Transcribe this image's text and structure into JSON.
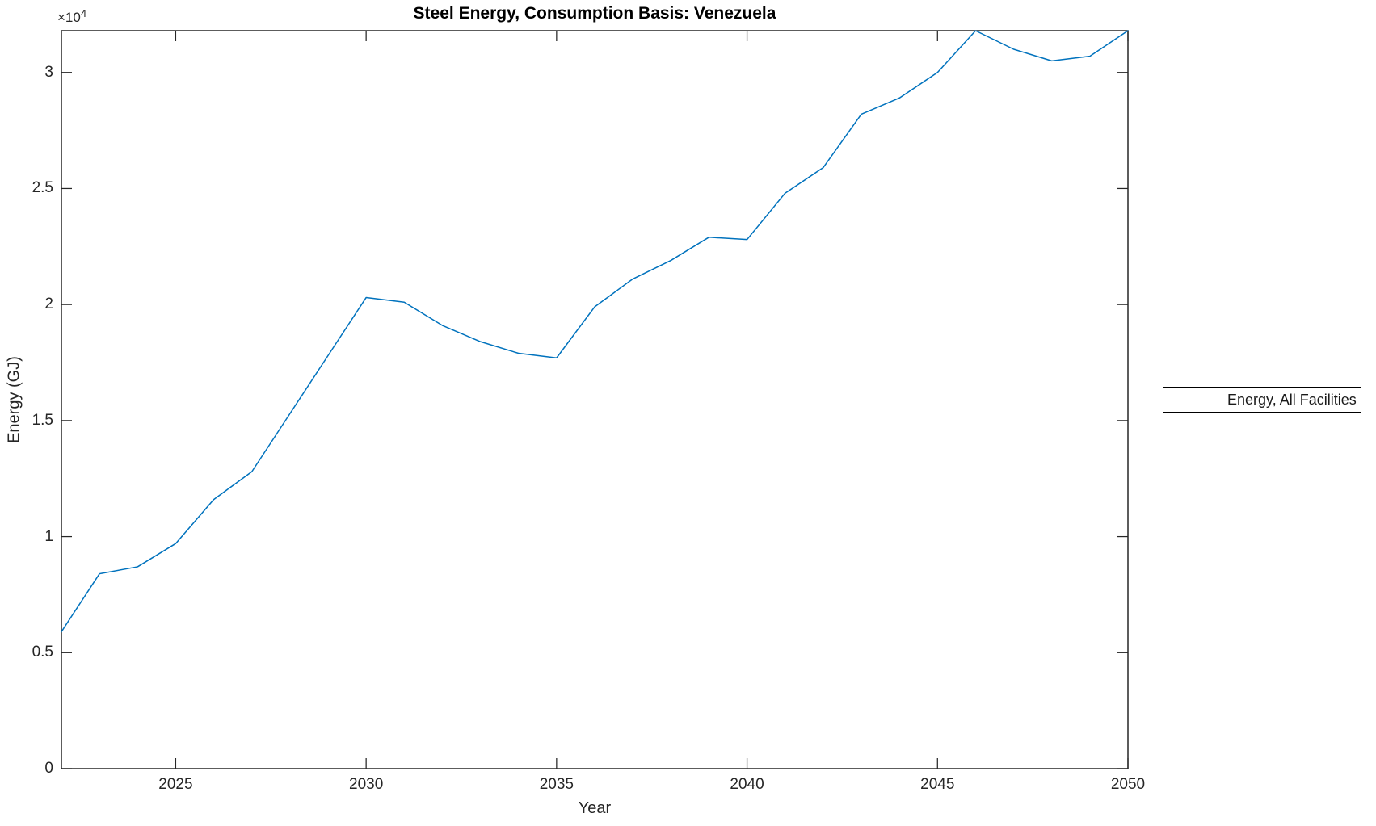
{
  "figure": {
    "title": "Steel Energy, Consumption Basis: Venezuela",
    "xlabel": "Year",
    "ylabel": "Energy (GJ)",
    "offset_text": {
      "base": "×10",
      "exponent": "4"
    }
  },
  "legend": {
    "entries": [
      {
        "label": "Energy, All Facilities",
        "color": "#0072BD"
      }
    ]
  },
  "colors": {
    "line": "#0072BD",
    "axis": "#262626",
    "title": "#000000"
  },
  "chart_data": {
    "type": "line",
    "title": "Steel Energy, Consumption Basis: Venezuela",
    "xlabel": "Year",
    "ylabel": "Energy (GJ)",
    "x": [
      2022,
      2023,
      2024,
      2025,
      2026,
      2027,
      2028,
      2029,
      2030,
      2031,
      2032,
      2033,
      2034,
      2035,
      2036,
      2037,
      2038,
      2039,
      2040,
      2041,
      2042,
      2043,
      2044,
      2045,
      2046,
      2047,
      2048,
      2049,
      2050
    ],
    "series": [
      {
        "name": "Energy, All Facilities",
        "color": "#0072BD",
        "values": [
          5900,
          8400,
          8700,
          9700,
          11600,
          12800,
          15300,
          17800,
          20300,
          20100,
          19100,
          18400,
          17900,
          17700,
          19900,
          21100,
          21900,
          22900,
          22800,
          24800,
          25900,
          28200,
          28900,
          30000,
          31800,
          31000,
          30500,
          30700,
          31800
        ]
      }
    ],
    "xlim": [
      2022,
      2050
    ],
    "ylim": [
      0,
      31800
    ],
    "xticks": [
      2025,
      2030,
      2035,
      2040,
      2045,
      2050
    ],
    "yticks": [
      0,
      5000,
      10000,
      15000,
      20000,
      25000,
      30000
    ],
    "ytick_labels": [
      "0",
      "0.5",
      "1",
      "1.5",
      "2",
      "2.5",
      "3"
    ],
    "y_multiplier": 10000,
    "grid": false,
    "legend_position": "eastoutside",
    "box": true,
    "tick_direction": "in"
  }
}
